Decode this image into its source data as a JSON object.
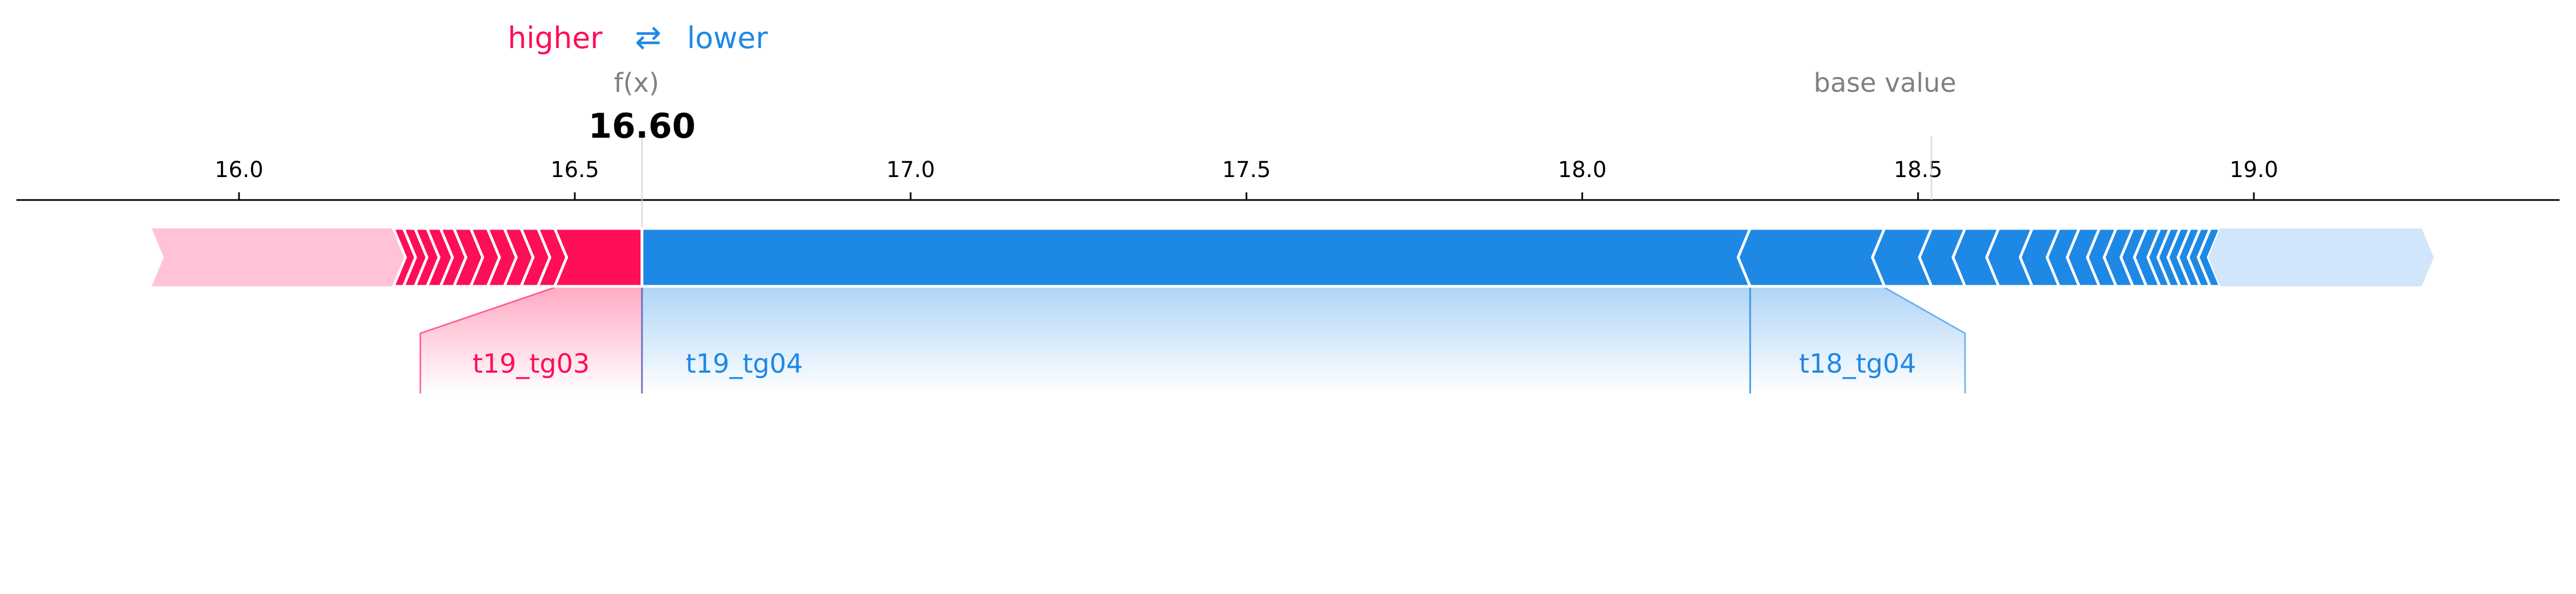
{
  "colors": {
    "higher": "#ff0d57",
    "lower": "#1e88e5",
    "higher_light": "#ffc3d5",
    "lower_light": "#d1e6fa",
    "muted": "#808080",
    "axis": "#000000"
  },
  "legend": {
    "higher": "higher",
    "arrows": "⇄",
    "lower": "lower"
  },
  "fx": {
    "label": "f(x)",
    "value_text": "16.60"
  },
  "base": {
    "label": "base value"
  },
  "chart_data": {
    "type": "force",
    "xlim": [
      15.67,
      19.44
    ],
    "ticks": [
      16.0,
      16.5,
      17.0,
      17.5,
      18.0,
      18.5,
      19.0
    ],
    "tick_labels": [
      "16.0",
      "16.5",
      "17.0",
      "17.5",
      "18.0",
      "18.5",
      "19.0"
    ],
    "fx_value": 16.6,
    "base_value": 18.52,
    "bar_min": 15.87,
    "bar_max": 19.25,
    "positive": {
      "light_end": 16.23,
      "segments": [
        16.23,
        16.245,
        16.262,
        16.28,
        16.3,
        16.32,
        16.345,
        16.37,
        16.395,
        16.42,
        16.445,
        16.47,
        16.6
      ],
      "labeled": [
        {
          "name": "t19_tg03",
          "from": 16.47,
          "to": 16.6,
          "label_from": 16.27,
          "label_to": 16.6
        }
      ]
    },
    "negative": {
      "light_start": 18.95,
      "segments": [
        16.6,
        18.25,
        18.45,
        18.52,
        18.57,
        18.62,
        18.67,
        18.71,
        18.74,
        18.77,
        18.795,
        18.82,
        18.84,
        18.86,
        18.875,
        18.89,
        18.905,
        18.92,
        18.935,
        18.95
      ],
      "labeled": [
        {
          "name": "t19_tg04",
          "from": 16.6,
          "to": 18.25,
          "label_from": 16.6,
          "label_to": 18.25
        },
        {
          "name": "t18_tg04",
          "from": 18.25,
          "to": 18.45,
          "label_from": 18.25,
          "label_to": 18.57
        }
      ]
    }
  }
}
